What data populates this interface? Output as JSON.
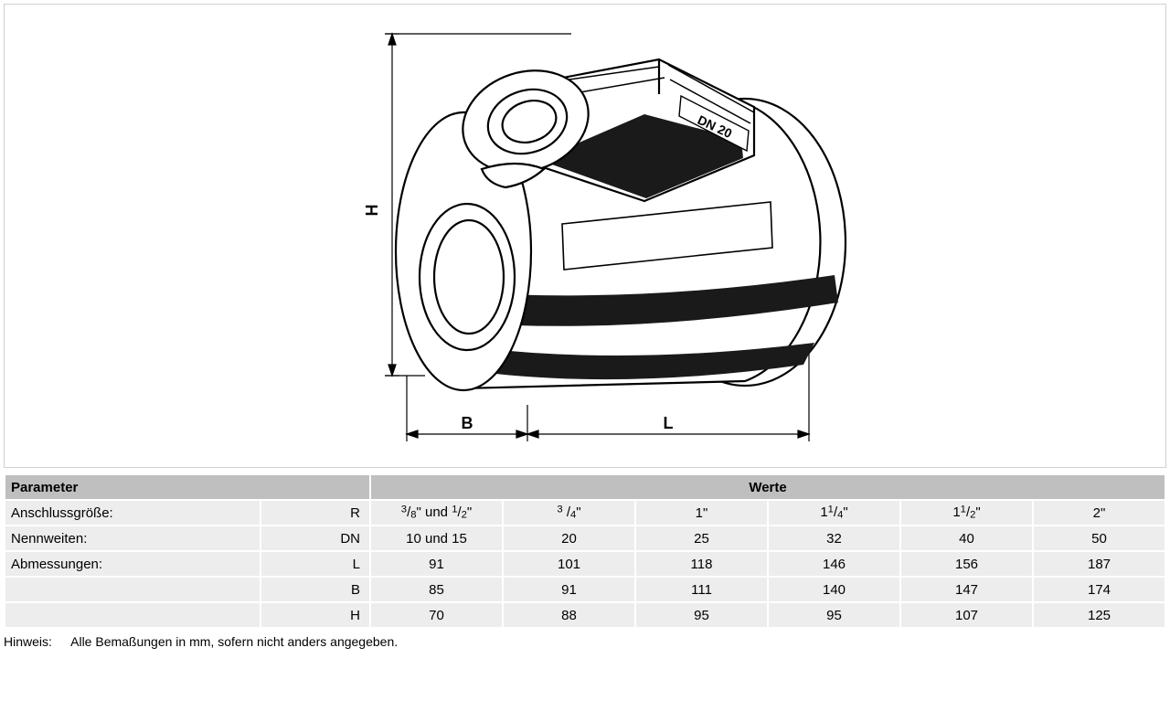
{
  "diagram": {
    "dim_labels": {
      "H": "H",
      "B": "B",
      "L": "L"
    },
    "part_label": "DN 20",
    "stroke": "#000000",
    "fill_light": "#ffffff",
    "fill_dark": "#1a1a1a",
    "border_color": "#d0d0d0"
  },
  "table": {
    "header_bg": "#bfbfbf",
    "cell_bg": "#ededed",
    "border_color": "#ffffff",
    "header_param": "Parameter",
    "header_values": "Werte",
    "rows": [
      {
        "label": "Anschlussgröße:",
        "symbol": "R",
        "values_html": [
          "<span class='frac'><sup>3</sup>/<sub>8</sub>\" und <sup>1</sup>/<sub>2</sub>\"</span>",
          "<span class='frac'><sup>3</sup> /<sub>4</sub>\"</span>",
          "1\"",
          "<span class='frac'>1<sup>1</sup>/<sub>4</sub>\"</span>",
          "<span class='frac'>1<sup>1</sup>/<sub>2</sub>\"</span>",
          "2\""
        ]
      },
      {
        "label": "Nennweiten:",
        "symbol": "DN",
        "values": [
          "10 und 15",
          "20",
          "25",
          "32",
          "40",
          "50"
        ]
      },
      {
        "label": "Abmessungen:",
        "symbol": "L",
        "values": [
          "91",
          "101",
          "118",
          "146",
          "156",
          "187"
        ]
      },
      {
        "label": "",
        "symbol": "B",
        "values": [
          "85",
          "91",
          "111",
          "140",
          "147",
          "174"
        ]
      },
      {
        "label": "",
        "symbol": "H",
        "values": [
          "70",
          "88",
          "95",
          "95",
          "107",
          "125"
        ]
      }
    ]
  },
  "note": {
    "label": "Hinweis:",
    "text": "Alle Bemaßungen in mm, sofern nicht anders angegeben."
  }
}
